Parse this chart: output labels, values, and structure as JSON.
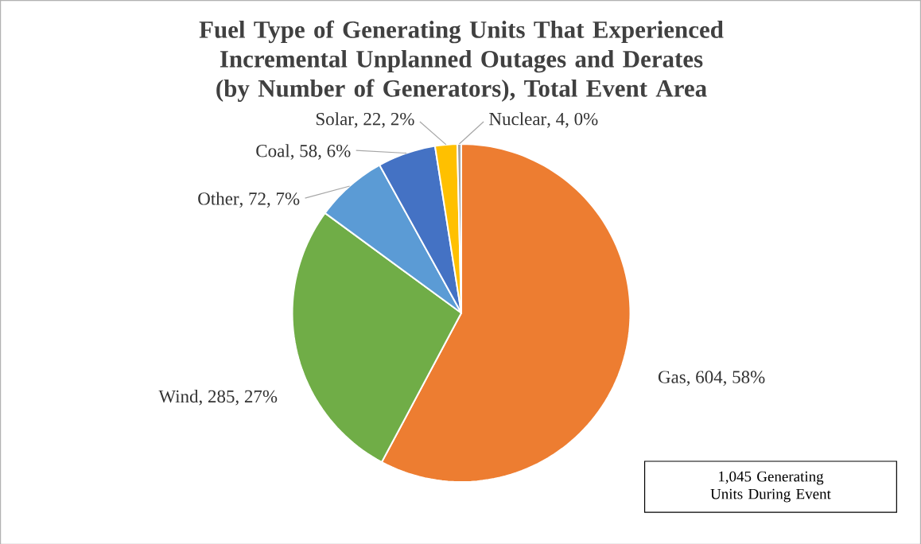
{
  "chart_data": {
    "type": "pie",
    "title": "Fuel Type of Generating Units That Experienced Incremental Unplanned Outages and Derates (by Number of Generators), Total Event Area",
    "categories": [
      "Gas",
      "Wind",
      "Other",
      "Coal",
      "Solar",
      "Nuclear"
    ],
    "values": [
      604,
      285,
      72,
      58,
      22,
      4
    ],
    "value_labels": [
      ", 604, 58%",
      ", 285, 27%",
      ", 72, 7%",
      ", 58, 6%",
      ", 22, 2%",
      ", 4, 0%"
    ],
    "colors": [
      "#ed7d31",
      "#70ad47",
      "#5b9bd5",
      "#4472c4",
      "#ffc000",
      "#a5a5a5"
    ],
    "annotations": [
      "1,045 Generating Units During Event"
    ]
  }
}
